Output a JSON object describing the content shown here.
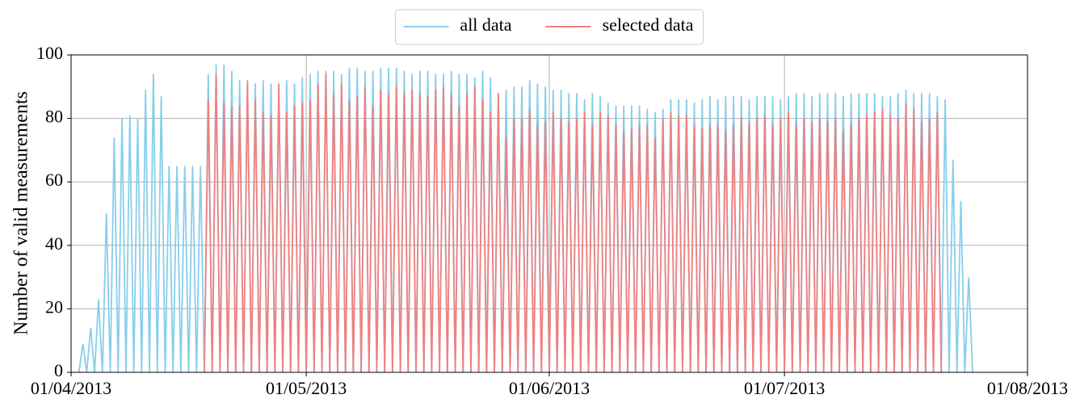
{
  "chart_data": {
    "type": "line",
    "y_label": "Number of valid measurements",
    "xlim": [
      0,
      122
    ],
    "ylim": [
      0,
      100
    ],
    "xticks": [
      {
        "value": 0,
        "label": "01/04/2013"
      },
      {
        "value": 30,
        "label": "01/05/2013"
      },
      {
        "value": 61,
        "label": "01/06/2013"
      },
      {
        "value": 91,
        "label": "01/07/2013"
      },
      {
        "value": 122,
        "label": "01/08/2013"
      }
    ],
    "yticks": [
      0,
      20,
      40,
      60,
      80,
      100
    ],
    "grid": true,
    "legend": "top-center",
    "x": [
      1,
      1.5,
      2,
      2.5,
      3,
      3.5,
      4,
      4.5,
      5,
      5.5,
      6,
      6.5,
      7,
      7.5,
      8,
      8.5,
      9,
      9.5,
      10,
      10.5,
      11,
      11.5,
      12,
      12.5,
      13,
      13.5,
      14,
      14.5,
      15,
      15.5,
      16,
      16.5,
      17,
      17.5,
      18,
      18.5,
      19,
      19.5,
      20,
      20.5,
      21,
      21.5,
      22,
      22.5,
      23,
      23.5,
      24,
      24.5,
      25,
      25.5,
      26,
      26.5,
      27,
      27.5,
      28,
      28.5,
      29,
      29.5,
      30,
      30.5,
      31,
      31.5,
      32,
      32.5,
      33,
      33.5,
      34,
      34.5,
      35,
      35.5,
      36,
      36.5,
      37,
      37.5,
      38,
      38.5,
      39,
      39.5,
      40,
      40.5,
      41,
      41.5,
      42,
      42.5,
      43,
      43.5,
      44,
      44.5,
      45,
      45.5,
      46,
      46.5,
      47,
      47.5,
      48,
      48.5,
      49,
      49.5,
      50,
      50.5,
      51,
      51.5,
      52,
      52.5,
      53,
      53.5,
      54,
      54.5,
      55,
      55.5,
      56,
      56.5,
      57,
      57.5,
      58,
      58.5,
      59,
      59.5,
      60,
      60.5,
      61,
      61.5,
      62,
      62.5,
      63,
      63.5,
      64,
      64.5,
      65,
      65.5,
      66,
      66.5,
      67,
      67.5,
      68,
      68.5,
      69,
      69.5,
      70,
      70.5,
      71,
      71.5,
      72,
      72.5,
      73,
      73.5,
      74,
      74.5,
      75,
      75.5,
      76,
      76.5,
      77,
      77.5,
      78,
      78.5,
      79,
      79.5,
      80,
      80.5,
      81,
      81.5,
      82,
      82.5,
      83,
      83.5,
      84,
      84.5,
      85,
      85.5,
      86,
      86.5,
      87,
      87.5,
      88,
      88.5,
      89,
      89.5,
      90,
      90.5,
      91,
      91.5,
      92,
      92.5,
      93,
      93.5,
      94,
      94.5,
      95,
      95.5,
      96,
      96.5,
      97,
      97.5,
      98,
      98.5,
      99,
      99.5,
      100,
      100.5,
      101,
      101.5,
      102,
      102.5,
      103,
      103.5,
      104,
      104.5,
      105,
      105.5,
      106,
      106.5,
      107,
      107.5,
      108,
      108.5,
      109,
      109.5,
      110,
      110.5,
      111,
      111.5,
      112,
      112.5,
      113,
      113.5,
      114,
      114.5,
      115
    ],
    "series": [
      {
        "name": "all data",
        "color": "#87ceeb",
        "values": [
          0,
          9,
          0,
          14,
          0,
          23,
          0,
          50,
          0,
          74,
          0,
          80,
          0,
          81,
          0,
          80,
          0,
          89,
          0,
          94,
          0,
          87,
          0,
          65,
          0,
          65,
          0,
          65,
          0,
          65,
          0,
          65,
          0,
          94,
          0,
          97,
          0,
          97,
          0,
          95,
          0,
          92,
          0,
          91,
          0,
          91,
          0,
          92,
          0,
          91,
          0,
          90,
          0,
          92,
          0,
          91,
          0,
          93,
          0,
          94,
          0,
          95,
          0,
          95,
          0,
          95,
          0,
          94,
          0,
          96,
          0,
          96,
          0,
          95,
          0,
          95,
          0,
          96,
          0,
          96,
          0,
          96,
          0,
          95,
          0,
          94,
          0,
          95,
          0,
          95,
          0,
          94,
          0,
          94,
          0,
          95,
          0,
          94,
          0,
          94,
          0,
          93,
          0,
          95,
          0,
          93,
          0,
          87,
          0,
          89,
          0,
          90,
          0,
          90,
          0,
          92,
          0,
          91,
          0,
          90,
          0,
          89,
          0,
          89,
          0,
          88,
          0,
          88,
          0,
          86,
          0,
          88,
          0,
          87,
          0,
          85,
          0,
          84,
          0,
          84,
          0,
          84,
          0,
          84,
          0,
          83,
          0,
          82,
          0,
          83,
          0,
          86,
          0,
          86,
          0,
          86,
          0,
          85,
          0,
          86,
          0,
          87,
          0,
          86,
          0,
          87,
          0,
          87,
          0,
          87,
          0,
          86,
          0,
          87,
          0,
          87,
          0,
          87,
          0,
          86,
          0,
          87,
          0,
          88,
          0,
          88,
          0,
          87,
          0,
          88,
          0,
          88,
          0,
          88,
          0,
          87,
          0,
          88,
          0,
          88,
          0,
          88,
          0,
          88,
          0,
          87,
          0,
          87,
          0,
          88,
          0,
          89,
          0,
          88,
          0,
          88,
          0,
          88,
          0,
          87,
          0,
          86,
          0,
          67,
          0,
          54,
          0,
          30,
          0
        ]
      },
      {
        "name": "selected data",
        "color": "#f08080",
        "values": [
          null,
          null,
          null,
          null,
          null,
          null,
          null,
          null,
          null,
          null,
          null,
          null,
          null,
          null,
          null,
          null,
          null,
          null,
          null,
          null,
          null,
          null,
          null,
          null,
          null,
          null,
          null,
          null,
          null,
          null,
          null,
          null,
          0,
          86,
          0,
          94,
          0,
          85,
          0,
          84,
          0,
          84,
          0,
          92,
          0,
          86,
          0,
          82,
          0,
          81,
          0,
          91,
          0,
          82,
          0,
          84,
          0,
          85,
          0,
          86,
          0,
          91,
          0,
          94,
          0,
          88,
          0,
          91,
          0,
          86,
          0,
          87,
          0,
          90,
          0,
          84,
          0,
          89,
          0,
          88,
          0,
          90,
          0,
          88,
          0,
          89,
          0,
          88,
          0,
          87,
          0,
          89,
          0,
          90,
          0,
          88,
          0,
          84,
          0,
          88,
          0,
          90,
          0,
          86,
          0,
          82,
          0,
          88,
          0,
          74,
          0,
          80,
          0,
          80,
          0,
          83,
          0,
          78,
          0,
          79,
          0,
          82,
          0,
          80,
          0,
          79,
          0,
          80,
          0,
          82,
          0,
          78,
          0,
          82,
          0,
          81,
          0,
          78,
          0,
          76,
          0,
          77,
          0,
          78,
          0,
          78,
          0,
          74,
          0,
          80,
          0,
          82,
          0,
          81,
          0,
          81,
          0,
          78,
          0,
          77,
          0,
          78,
          0,
          78,
          0,
          76,
          0,
          78,
          0,
          80,
          0,
          79,
          0,
          80,
          0,
          81,
          0,
          78,
          0,
          80,
          0,
          82,
          0,
          78,
          0,
          80,
          0,
          79,
          0,
          80,
          0,
          79,
          0,
          80,
          0,
          76,
          0,
          78,
          0,
          80,
          0,
          81,
          0,
          82,
          0,
          83,
          0,
          81,
          0,
          80,
          0,
          85,
          0,
          83,
          0,
          79,
          0,
          80,
          0,
          82,
          0,
          null,
          null,
          null,
          null,
          null,
          null,
          null,
          null
        ]
      }
    ]
  }
}
